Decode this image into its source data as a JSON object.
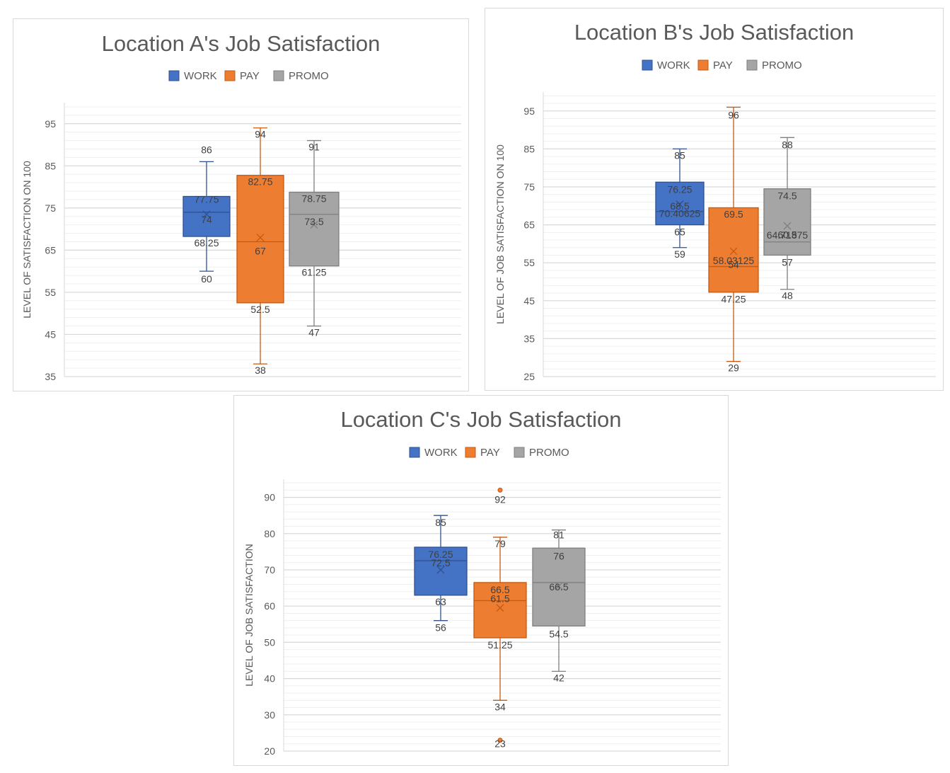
{
  "colors": {
    "work": "#4472C4",
    "work_edge": "#2F528F",
    "pay": "#ED7D31",
    "pay_edge": "#C55A11",
    "promo": "#A5A5A5",
    "promo_edge": "#7F7F7F",
    "grid_major": "#d9d9d9",
    "grid_minor": "#efefef",
    "text": "#595959"
  },
  "chart_data": [
    {
      "type": "boxplot",
      "title": "Location A's Job Satisfaction",
      "ylabel": "LEVEL OF SATISFACTION ON 100",
      "ylim": [
        35,
        100
      ],
      "yticks": [
        "35",
        "45",
        "55",
        "65",
        "75",
        "85",
        "95"
      ],
      "legend_position": "top",
      "series": [
        {
          "name": "WORK",
          "color_key": "work",
          "min": 60,
          "q1": 68.25,
          "median": 74,
          "q3": 77.75,
          "max": 86,
          "mean": 73.5,
          "outliers": [],
          "labels": [
            "86",
            "77.75",
            "74",
            "68.25",
            "60"
          ]
        },
        {
          "name": "PAY",
          "color_key": "pay",
          "min": 38,
          "q1": 52.5,
          "median": 67,
          "q3": 82.75,
          "max": 94,
          "mean": 68,
          "outliers": [],
          "labels": [
            "94",
            "82.75",
            "67",
            "52.5",
            "38"
          ]
        },
        {
          "name": "PROMO",
          "color_key": "promo",
          "min": 47,
          "q1": 61.25,
          "median": 73.5,
          "q3": 78.75,
          "max": 91,
          "mean": 71,
          "outliers": [],
          "labels": [
            "91",
            "78.75",
            "73.5",
            "61.25",
            "47"
          ]
        }
      ]
    },
    {
      "type": "boxplot",
      "title": "Location B's Job Satisfaction",
      "ylabel": "LEVEL OF JOB SATISFACTION ON 100",
      "ylim": [
        25,
        100
      ],
      "yticks": [
        "25",
        "35",
        "45",
        "55",
        "65",
        "75",
        "85",
        "95"
      ],
      "legend_position": "top",
      "series": [
        {
          "name": "WORK",
          "color_key": "work",
          "min": 59,
          "q1": 65,
          "median": 68.5,
          "q3": 76.25,
          "max": 85,
          "mean": 70.40625,
          "outliers": [],
          "labels": [
            "85",
            "76.25",
            "70.40625",
            "68.5",
            "65",
            "59"
          ]
        },
        {
          "name": "PAY",
          "color_key": "pay",
          "min": 29,
          "q1": 47.25,
          "median": 54,
          "q3": 69.5,
          "max": 96,
          "mean": 58.03125,
          "outliers": [],
          "labels": [
            "96",
            "69.5",
            "58.03125",
            "54",
            "47.25",
            "29"
          ]
        },
        {
          "name": "PROMO",
          "color_key": "promo",
          "min": 48,
          "q1": 57,
          "median": 60.5,
          "q3": 74.5,
          "max": 88,
          "mean": 64.71875,
          "outliers": [],
          "labels": [
            "88",
            "74.5",
            "64.71875",
            "60.5",
            "57",
            "48"
          ]
        }
      ]
    },
    {
      "type": "boxplot",
      "title": "Location C's Job Satisfaction",
      "ylabel": "LEVEL OF JOB SATISFACTION",
      "ylim": [
        20,
        95
      ],
      "yticks": [
        "20",
        "30",
        "40",
        "50",
        "60",
        "70",
        "80",
        "90"
      ],
      "legend_position": "top",
      "series": [
        {
          "name": "WORK",
          "color_key": "work",
          "min": 56,
          "q1": 63,
          "median": 72.5,
          "q3": 76.25,
          "max": 85,
          "mean": 70,
          "outliers": [],
          "labels": [
            "85",
            "76.25",
            "72.5",
            "63",
            "56"
          ]
        },
        {
          "name": "PAY",
          "color_key": "pay",
          "min": 34,
          "q1": 51.25,
          "median": 61.5,
          "q3": 66.5,
          "max": 79,
          "mean": 59.5,
          "outliers": [
            92,
            23
          ],
          "labels": [
            "92",
            "79",
            "66.5",
            "61.5",
            "51.25",
            "34",
            "23"
          ]
        },
        {
          "name": "PROMO",
          "color_key": "promo",
          "min": 42,
          "q1": 54.5,
          "median": 66.5,
          "q3": 76,
          "max": 81,
          "mean": 65.5,
          "outliers": [],
          "labels": [
            "81",
            "76",
            "66.5",
            "54.5",
            "42"
          ]
        }
      ]
    }
  ]
}
